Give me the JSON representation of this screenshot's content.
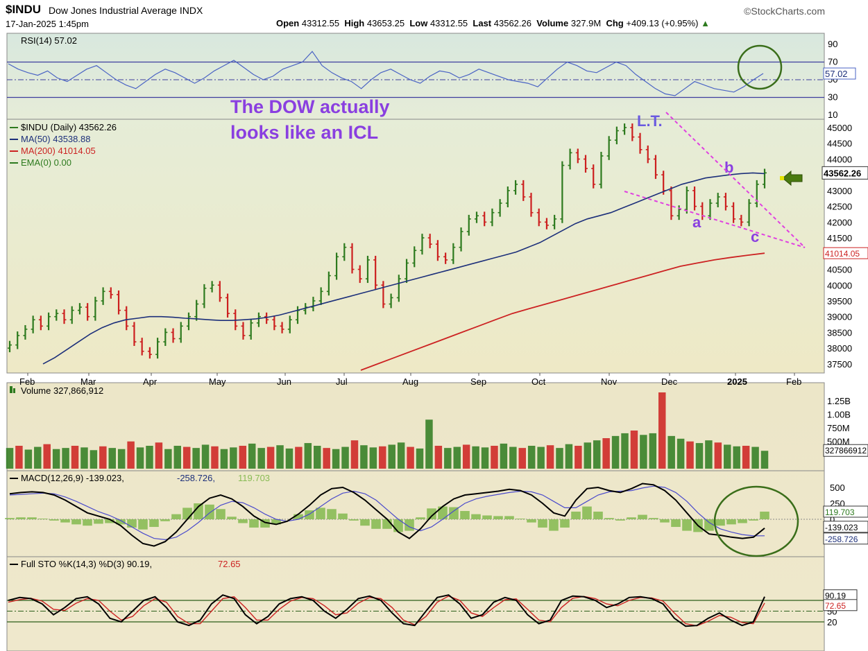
{
  "header": {
    "symbol": "$INDU",
    "name": "Dow Jones Industrial Average INDX",
    "copyright": "©StockCharts.com",
    "datetime": "17-Jan-2025 1:45pm",
    "open_label": "Open",
    "open": "43312.55",
    "high_label": "High",
    "high": "43653.25",
    "low_label": "Low",
    "low": "43312.55",
    "last_label": "Last",
    "last": "43562.26",
    "volume_label": "Volume",
    "volume": "327.9M",
    "chg_label": "Chg",
    "chg": "+409.13 (+0.95%)",
    "chg_arrow": "▲"
  },
  "colors": {
    "bar_up": "#2d7a1e",
    "bar_down": "#cc1f1f",
    "ma50": "#1c2f7a",
    "ma200": "#cc2222",
    "rsi_line": "#4a63c4",
    "macd_line": "#000000",
    "signal_line": "#4a4acc",
    "hist": "#88bb55",
    "stoch_k": "#000000",
    "stoch_d": "#cc2222",
    "annotation": "#8a3fe0",
    "trendline": "#e040e0",
    "circle": "#3a6e1a",
    "arrow": "#4a7a10"
  },
  "chart_data": [
    {
      "type": "line",
      "panel": "rsi",
      "title": "RSI(14) 57.02",
      "value_label": "57.02",
      "y_ticks": [
        "90",
        "70",
        "50",
        "30",
        "10"
      ],
      "ylim": [
        10,
        90
      ],
      "bands": [
        70,
        30
      ],
      "values": [
        68,
        62,
        58,
        55,
        60,
        52,
        48,
        55,
        62,
        66,
        58,
        50,
        44,
        40,
        48,
        56,
        62,
        58,
        52,
        46,
        52,
        60,
        66,
        72,
        64,
        56,
        50,
        54,
        62,
        66,
        70,
        82,
        66,
        58,
        52,
        48,
        40,
        50,
        58,
        62,
        56,
        50,
        46,
        54,
        60,
        58,
        52,
        56,
        62,
        58,
        54,
        50,
        48,
        46,
        42,
        52,
        62,
        70,
        66,
        60,
        58,
        64,
        70,
        66,
        56,
        48,
        40,
        34,
        32,
        40,
        48,
        44,
        40,
        38,
        36,
        42,
        50,
        57.02
      ]
    },
    {
      "type": "bar",
      "panel": "price",
      "title": "$INDU (Daily) 43562.26",
      "legend": [
        {
          "label": "$INDU (Daily) 43562.26",
          "color": "#2d7a1e"
        },
        {
          "label": "MA(50) 43538.88",
          "color": "#1c2f7a"
        },
        {
          "label": "MA(200) 41014.05",
          "color": "#cc2222"
        },
        {
          "label": "EMA(0) 0.00",
          "color": "#2d7a1e"
        }
      ],
      "x_ticks": [
        "Feb",
        "Mar",
        "Apr",
        "May",
        "Jun",
        "Jul",
        "Aug",
        "Sep",
        "Oct",
        "Nov",
        "Dec",
        "2025",
        "Feb"
      ],
      "y_ticks": [
        "45000",
        "44500",
        "44000",
        "43500",
        "43000",
        "42500",
        "42000",
        "41500",
        "41000",
        "40500",
        "40000",
        "39500",
        "39000",
        "38500",
        "38000",
        "37500"
      ],
      "ylim": [
        37400,
        45300
      ],
      "last_label": "43562.26",
      "ma200_label": "41014.05",
      "closes": [
        38100,
        38400,
        38600,
        38900,
        38700,
        39000,
        39100,
        38900,
        39200,
        39300,
        39000,
        39500,
        39800,
        39700,
        39200,
        38700,
        38200,
        37900,
        37800,
        38200,
        38500,
        38300,
        38700,
        39000,
        39400,
        39900,
        40000,
        39600,
        39100,
        38700,
        38400,
        38800,
        39000,
        38900,
        38700,
        38600,
        38900,
        39200,
        39300,
        39500,
        39800,
        40300,
        40900,
        41200,
        40500,
        40200,
        40800,
        40000,
        39400,
        39600,
        40200,
        40700,
        41100,
        41500,
        41300,
        40900,
        40800,
        41200,
        41700,
        42100,
        42200,
        42000,
        42300,
        42600,
        43000,
        43200,
        42800,
        42300,
        42000,
        41900,
        42100,
        43800,
        44200,
        44000,
        43700,
        43200,
        44100,
        44600,
        44900,
        45000,
        44700,
        44300,
        44000,
        43500,
        43000,
        42200,
        42400,
        43000,
        42500,
        42200,
        42600,
        42800,
        42500,
        42100,
        42000,
        42600,
        43200,
        43562
      ],
      "ma50": [
        37500,
        37700,
        37950,
        38200,
        38450,
        38650,
        38800,
        38900,
        38950,
        39000,
        39000,
        38980,
        38950,
        38930,
        38900,
        38880,
        38880,
        38900,
        38930,
        38980,
        39050,
        39150,
        39250,
        39350,
        39450,
        39550,
        39650,
        39750,
        39850,
        39950,
        40050,
        40150,
        40250,
        40350,
        40450,
        40550,
        40650,
        40750,
        40850,
        40950,
        41050,
        41200,
        41350,
        41550,
        41750,
        41950,
        42100,
        42200,
        42300,
        42450,
        42600,
        42750,
        42900,
        43050,
        43200,
        43300,
        43400,
        43450,
        43500,
        43540,
        43560,
        43540
      ],
      "ma200": [
        37300,
        37500,
        37700,
        37900,
        38100,
        38300,
        38500,
        38700,
        38900,
        39100,
        39250,
        39400,
        39550,
        39700,
        39850,
        40000,
        40150,
        40300,
        40450,
        40600,
        40700,
        40800,
        40880,
        40950,
        41014
      ]
    },
    {
      "type": "bar",
      "panel": "volume",
      "title": "Volume 327,866,912",
      "y_ticks": [
        "1.25B",
        "1.00B",
        "750M",
        "500M"
      ],
      "value_label": "327866912",
      "ylim": [
        0,
        1400
      ],
      "values": [
        380,
        420,
        350,
        400,
        450,
        360,
        380,
        420,
        390,
        340,
        410,
        380,
        360,
        500,
        390,
        420,
        480,
        360,
        420,
        400,
        380,
        440,
        410,
        360,
        390,
        420,
        460,
        380,
        400,
        430,
        370,
        400,
        470,
        420,
        380,
        360,
        400,
        520,
        430,
        390,
        410,
        440,
        480,
        400,
        370,
        900,
        420,
        380,
        400,
        440,
        410,
        390,
        420,
        460,
        400,
        380,
        420,
        400,
        430,
        380,
        450,
        420,
        480,
        520,
        560,
        600,
        650,
        700,
        620,
        650,
        1400,
        600,
        550,
        500,
        470,
        520,
        480,
        440,
        410,
        420,
        400,
        328
      ]
    },
    {
      "type": "line",
      "panel": "macd",
      "title": "MACD(12,26,9) -139.023, -258.726, 119.703",
      "title_parts": [
        "MACD(12,26,9) -139.023,",
        "-258.726,",
        "119.703"
      ],
      "y_ticks": [
        "500",
        "250",
        "0"
      ],
      "value_labels": [
        "119.703",
        "-139.023",
        "-258.726"
      ],
      "ylim": [
        -450,
        650
      ],
      "macd": [
        400,
        420,
        430,
        420,
        380,
        300,
        200,
        100,
        50,
        0,
        -100,
        -250,
        -380,
        -420,
        -350,
        -200,
        0,
        200,
        330,
        380,
        320,
        200,
        50,
        -50,
        -80,
        -30,
        80,
        220,
        380,
        480,
        500,
        420,
        300,
        150,
        0,
        -200,
        -300,
        -150,
        50,
        200,
        320,
        380,
        400,
        420,
        440,
        470,
        450,
        380,
        250,
        100,
        50,
        300,
        480,
        500,
        450,
        420,
        480,
        560,
        540,
        450,
        300,
        100,
        -100,
        -230,
        -250,
        -280,
        -300,
        -280,
        -139
      ],
      "signal": [
        380,
        390,
        400,
        410,
        400,
        350,
        280,
        200,
        120,
        60,
        -20,
        -120,
        -220,
        -300,
        -320,
        -280,
        -180,
        -50,
        100,
        220,
        280,
        260,
        180,
        80,
        0,
        -30,
        0,
        80,
        200,
        320,
        410,
        440,
        400,
        300,
        150,
        0,
        -120,
        -180,
        -120,
        0,
        130,
        250,
        320,
        360,
        390,
        420,
        440,
        430,
        380,
        280,
        180,
        180,
        280,
        380,
        430,
        440,
        450,
        490,
        520,
        500,
        420,
        280,
        100,
        -50,
        -150,
        -200,
        -240,
        -260,
        -259
      ],
      "hist": [
        20,
        30,
        30,
        10,
        -20,
        -50,
        -80,
        -100,
        -70,
        -60,
        -80,
        -130,
        -160,
        -120,
        -30,
        80,
        180,
        250,
        230,
        160,
        40,
        -60,
        -130,
        -130,
        -80,
        0,
        80,
        140,
        180,
        160,
        90,
        -20,
        -100,
        -150,
        -150,
        -200,
        -180,
        30,
        170,
        200,
        190,
        130,
        80,
        60,
        50,
        50,
        10,
        -50,
        -130,
        -180,
        -130,
        120,
        200,
        120,
        20,
        -20,
        30,
        70,
        20,
        -50,
        -120,
        -180,
        -200,
        -180,
        -100,
        -80,
        -60,
        -20,
        120
      ]
    },
    {
      "type": "line",
      "panel": "stochastic",
      "title": "Full STO %K(14,3) %D(3) 90.19, 72.65",
      "title_parts": [
        "Full STO %K(14,3) %D(3) 90.19,",
        "72.65"
      ],
      "y_ticks": [
        "50",
        "20"
      ],
      "value_labels": [
        "90.19",
        "72.65"
      ],
      "ylim": [
        0,
        110
      ],
      "k": [
        80,
        88,
        85,
        70,
        40,
        60,
        85,
        90,
        70,
        30,
        20,
        50,
        80,
        90,
        60,
        20,
        10,
        25,
        70,
        95,
        85,
        40,
        15,
        35,
        70,
        85,
        90,
        80,
        50,
        30,
        55,
        85,
        92,
        80,
        45,
        15,
        10,
        50,
        88,
        95,
        70,
        30,
        40,
        75,
        88,
        80,
        40,
        15,
        25,
        80,
        92,
        90,
        80,
        60,
        70,
        88,
        90,
        85,
        70,
        30,
        8,
        10,
        30,
        45,
        25,
        10,
        20,
        90.19
      ],
      "d": [
        75,
        82,
        86,
        78,
        55,
        52,
        72,
        85,
        80,
        50,
        25,
        35,
        65,
        85,
        75,
        35,
        15,
        15,
        50,
        85,
        90,
        60,
        25,
        25,
        55,
        78,
        88,
        85,
        65,
        40,
        45,
        72,
        88,
        85,
        60,
        25,
        12,
        35,
        75,
        92,
        80,
        45,
        35,
        60,
        82,
        84,
        55,
        25,
        20,
        60,
        86,
        91,
        85,
        70,
        65,
        80,
        88,
        87,
        78,
        45,
        15,
        9,
        22,
        38,
        33,
        18,
        15,
        72.65
      ]
    }
  ],
  "annotations": {
    "title_line1": "The DOW actually",
    "title_line2": "looks like an ICL",
    "lt": "L.T.",
    "a": "a",
    "b": "b",
    "c": "c"
  }
}
